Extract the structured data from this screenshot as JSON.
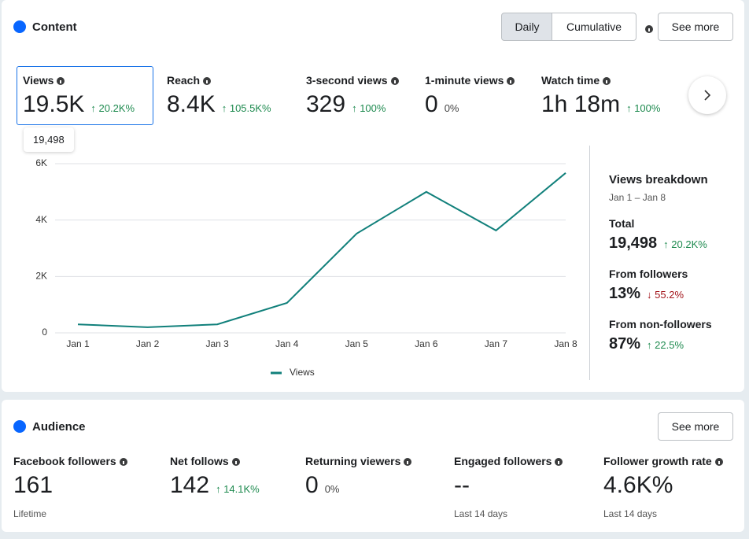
{
  "content": {
    "title": "Content",
    "toggle": [
      "Daily",
      "Cumulative"
    ],
    "see_more": "See more",
    "metrics": [
      {
        "label": "Views",
        "value": "19.5K",
        "change": "20.2K%"
      },
      {
        "label": "Reach",
        "value": "8.4K",
        "change": "105.5K%"
      },
      {
        "label": "3-second views",
        "value": "329",
        "change": "100%"
      },
      {
        "label": "1-minute views",
        "value": "0",
        "change": "0%"
      },
      {
        "label": "Watch time",
        "value": "1h 18m",
        "change": "100%"
      }
    ],
    "tooltip": "19,498",
    "chart": {
      "type": "line",
      "x": [
        "Jan 1",
        "Jan 2",
        "Jan 3",
        "Jan 4",
        "Jan 5",
        "Jan 6",
        "Jan 7",
        "Jan 8"
      ],
      "series": [
        {
          "name": "Views",
          "color": "#11807b",
          "values": [
            300,
            200,
            300,
            1060,
            3520,
            5000,
            3630,
            5670
          ]
        }
      ],
      "ylim": [
        0,
        6000
      ],
      "yticks": [
        0,
        {
          "value": 2000,
          "label": "2K"
        },
        {
          "value": 4000,
          "label": "4K"
        },
        {
          "value": 6000,
          "label": "6K"
        }
      ],
      "grid": true
    },
    "breakdown": {
      "title": "Views breakdown",
      "range": "Jan 1 – Jan 8",
      "items": [
        {
          "label": "Total",
          "value": "19,498",
          "change": "20.2K%"
        },
        {
          "label": "From followers",
          "value": "13%",
          "change": "55.2%"
        },
        {
          "label": "From non-followers",
          "value": "87%",
          "change": "22.5%"
        }
      ]
    }
  },
  "audience": {
    "title": "Audience",
    "see_more": "See more",
    "metrics": [
      {
        "label": "Facebook followers",
        "value": "161",
        "note": "Lifetime"
      },
      {
        "label": "Net follows",
        "value": "142",
        "change": "14.1K%"
      },
      {
        "label": "Returning viewers",
        "value": "0",
        "change": "0%"
      },
      {
        "label": "Engaged followers",
        "value": "--",
        "note": "Last 14 days"
      },
      {
        "label": "Follower growth rate",
        "value": "4.6K%",
        "note": "Last 14 days"
      }
    ]
  }
}
